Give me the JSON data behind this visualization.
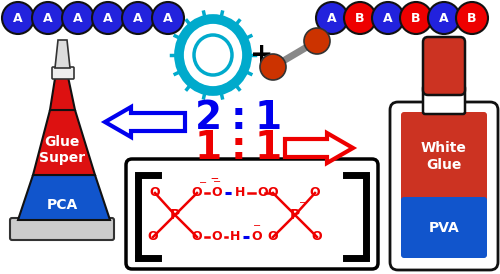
{
  "bg_color": "#ffffff",
  "blue": "#0000ee",
  "red": "#ee0000",
  "dark_red": "#cc3300",
  "cyan": "#00aacc",
  "ball_blue": "#2222dd",
  "ball_red": "#ee0000",
  "left_label1": "Super",
  "left_label2": "Glue",
  "left_label3": "PCA",
  "right_label1": "White",
  "right_label2": "Glue",
  "right_label3": "PVA",
  "beads_left": [
    "A",
    "A",
    "A",
    "A",
    "A",
    "A"
  ],
  "beads_right": [
    "A",
    "B",
    "A",
    "B",
    "A",
    "B"
  ],
  "tube_red": "#dd1111",
  "tube_blue": "#1155cc",
  "bottle_red": "#cc3322",
  "bottle_blue": "#1155cc"
}
